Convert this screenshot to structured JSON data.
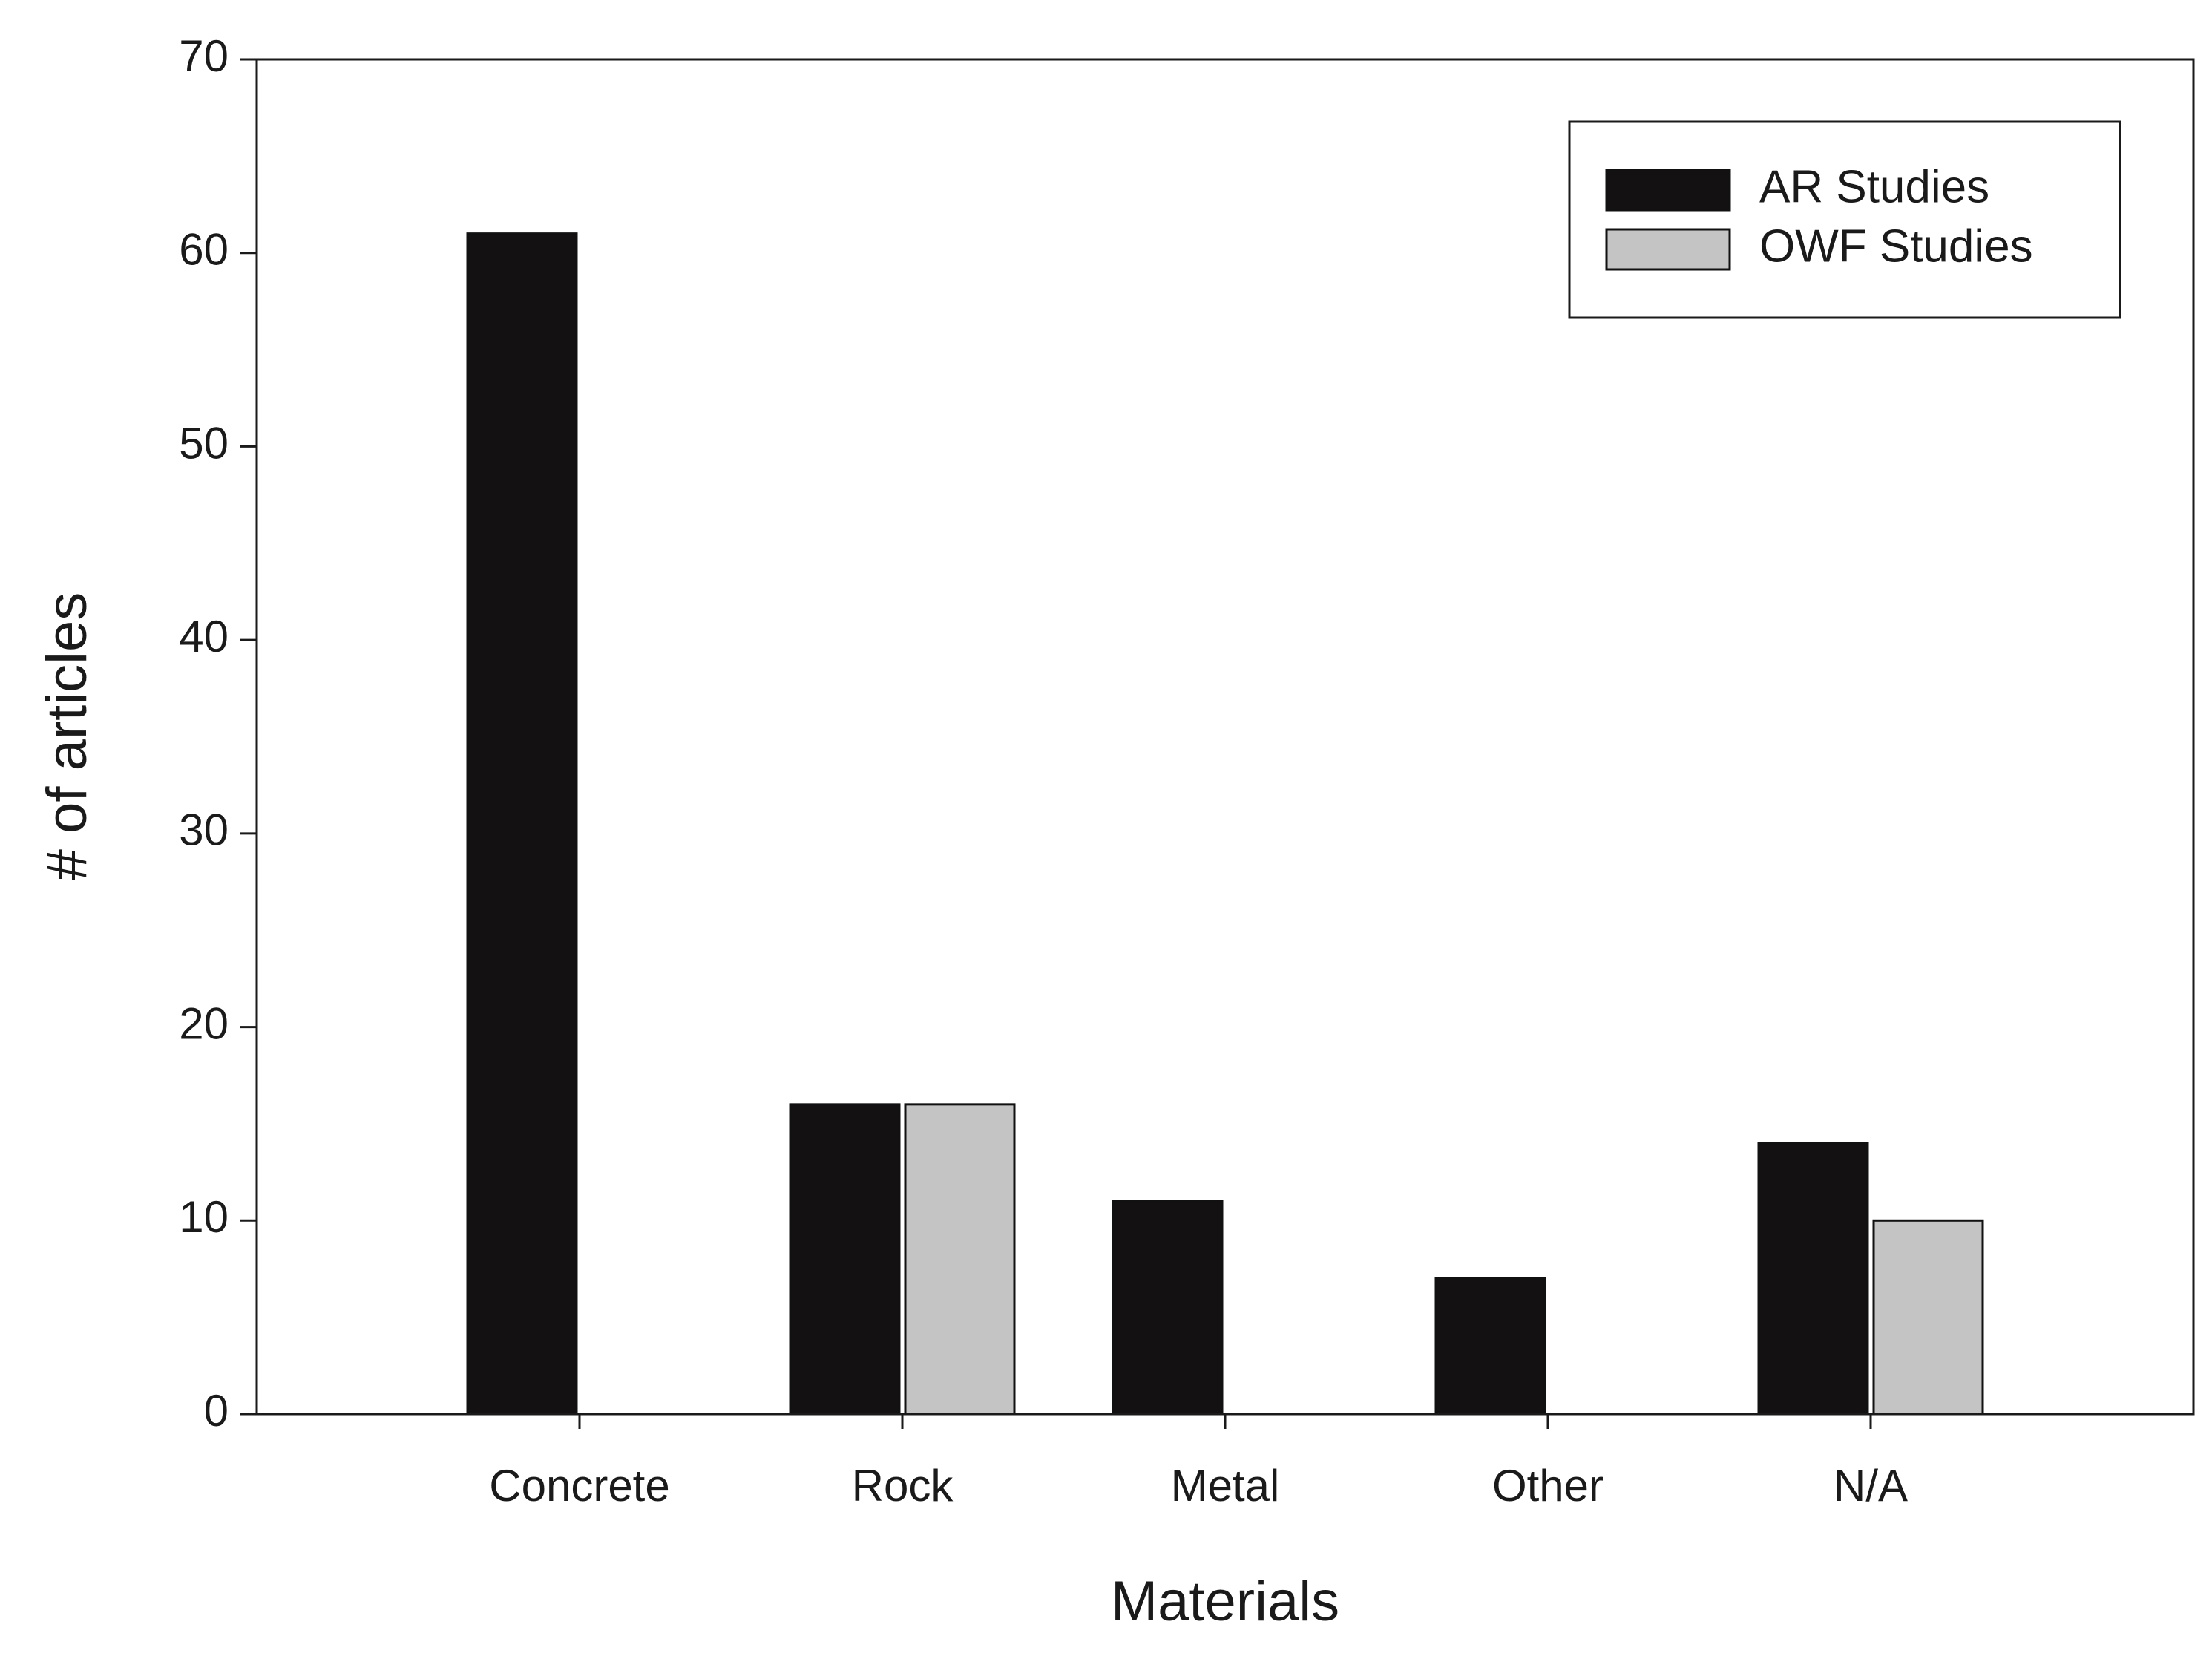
{
  "chart_data": {
    "type": "bar",
    "x_label": "Materials",
    "y_label": "# of articles",
    "categories": [
      "Concrete",
      "Rock",
      "Metal",
      "Other",
      "N/A"
    ],
    "series": [
      {
        "name": "AR Studies",
        "color": "#141112",
        "values": [
          61,
          16,
          11,
          7,
          14
        ]
      },
      {
        "name": "OWF Studies",
        "color": "#c4c4c4",
        "values": [
          0,
          16,
          0,
          0,
          10
        ]
      }
    ],
    "ylim": [
      0,
      70
    ],
    "yticks": [
      0,
      10,
      20,
      30,
      40,
      50,
      60,
      70
    ],
    "grid": false,
    "legend": "upper right"
  }
}
